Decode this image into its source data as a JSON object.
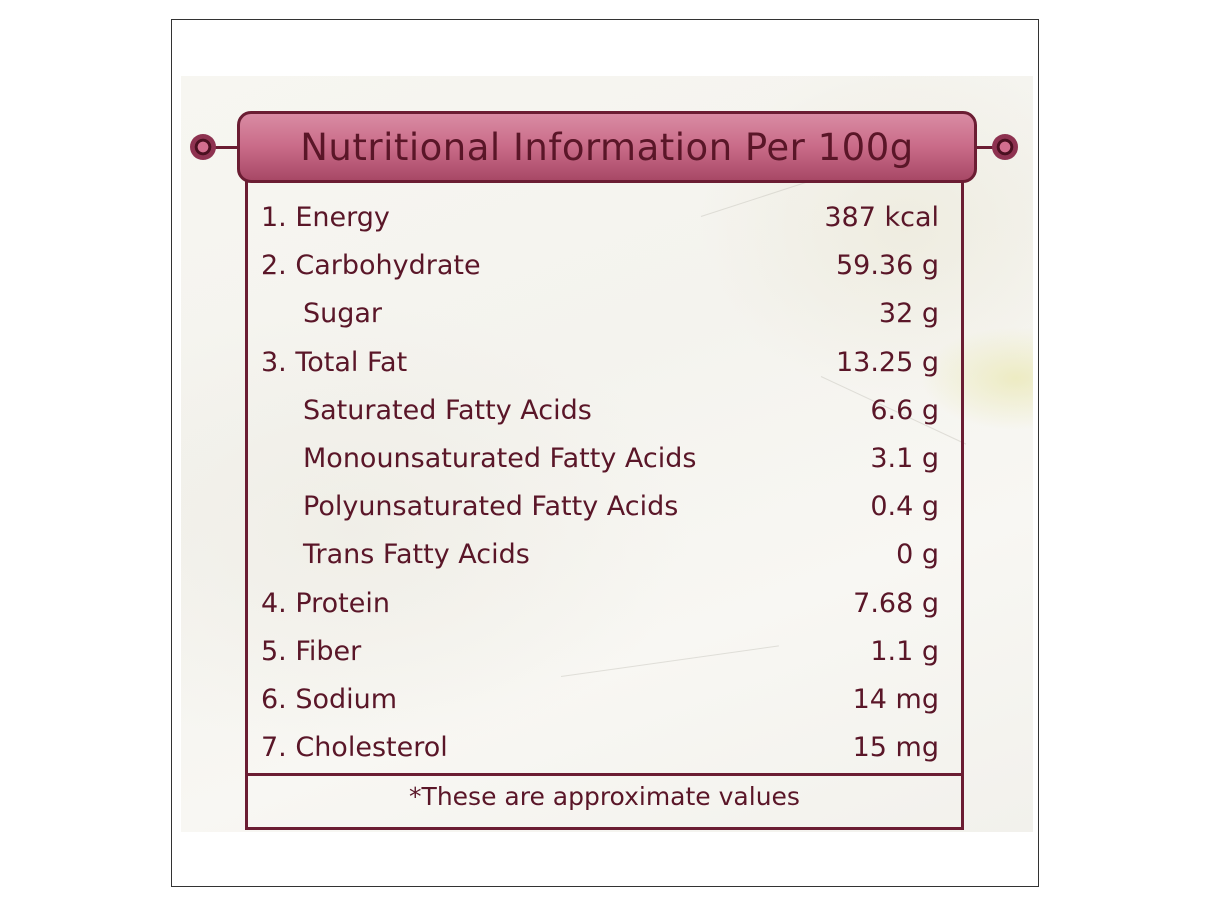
{
  "title": "Nutritional Information Per 100g",
  "rows": [
    {
      "label": "1. Energy",
      "value": "387 kcal",
      "sub": false
    },
    {
      "label": "2. Carbohydrate",
      "value": "59.36 g",
      "sub": false
    },
    {
      "label": "Sugar",
      "value": "32 g",
      "sub": true
    },
    {
      "label": "3. Total Fat",
      "value": "13.25 g",
      "sub": false
    },
    {
      "label": "Saturated Fatty Acids",
      "value": "6.6 g",
      "sub": true
    },
    {
      "label": "Monounsaturated Fatty Acids",
      "value": "3.1 g",
      "sub": true
    },
    {
      "label": "Polyunsaturated Fatty Acids",
      "value": "0.4 g",
      "sub": true
    },
    {
      "label": "Trans Fatty Acids",
      "value": "0 g",
      "sub": true
    },
    {
      "label": "4. Protein",
      "value": "7.68 g",
      "sub": false
    },
    {
      "label": "5. Fiber",
      "value": "1.1 g",
      "sub": false
    },
    {
      "label": "6. Sodium",
      "value": "14 mg",
      "sub": false
    },
    {
      "label": "7. Cholesterol",
      "value": "15 mg",
      "sub": false
    }
  ],
  "footnote": "*These are approximate values",
  "colors": {
    "text": "#5a1628",
    "border": "#6b1d33",
    "banner": "#c96b88"
  }
}
